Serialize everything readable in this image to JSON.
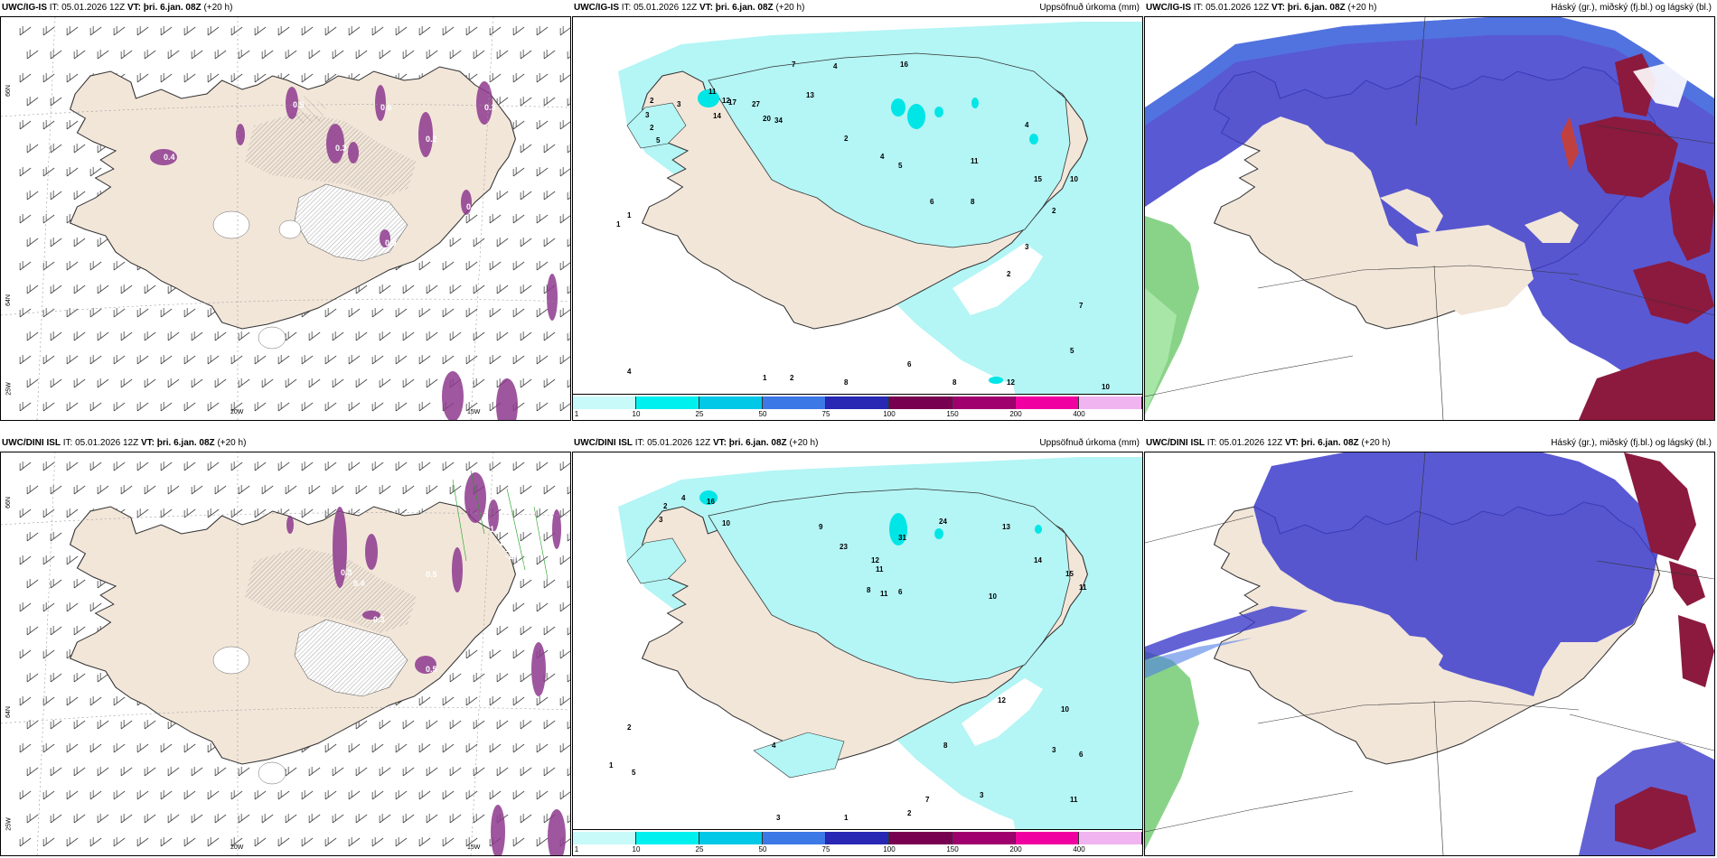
{
  "panels": [
    {
      "model": "UWC/IG-IS",
      "it_prefix": "IT: 05.01.2026 12Z",
      "vt_label": "VT: þri. 6.jan. 08Z",
      "lead": "(+20 h)",
      "right": ""
    },
    {
      "model": "UWC/IG-IS",
      "it_prefix": "IT: 05.01.2026 12Z",
      "vt_label": "VT: þri. 6.jan. 08Z",
      "lead": "(+20 h)",
      "right": "Uppsöfnuð úrkoma (mm)"
    },
    {
      "model": "UWC/IG-IS",
      "it_prefix": "IT: 05.01.2026 12Z",
      "vt_label": "VT: þri. 6.jan. 08Z",
      "lead": "(+20 h)",
      "right": "Háský (gr.), miðský (fj.bl.) og lágský (bl.)"
    },
    {
      "model": "UWC/DINI ISL",
      "it_prefix": "IT: 05.01.2026 12Z",
      "vt_label": "VT: þri. 6.jan. 08Z",
      "lead": "(+20 h)",
      "right": ""
    },
    {
      "model": "UWC/DINI ISL",
      "it_prefix": "IT: 05.01.2026 12Z",
      "vt_label": "VT: þri. 6.jan. 08Z",
      "lead": "(+20 h)",
      "right": "Uppsöfnuð úrkoma (mm)"
    },
    {
      "model": "UWC/DINI ISL",
      "it_prefix": "IT: 05.01.2026 12Z",
      "vt_label": "VT: þri. 6.jan. 08Z",
      "lead": "(+20 h)",
      "right": "Háský (gr.), miðský (fj.bl.) og lágský (bl.)"
    }
  ],
  "axes": {
    "lat66": "66N",
    "lat64": "64N",
    "lon25": "25W",
    "lon20": "20W",
    "lon15": "15W"
  },
  "colorbar": {
    "labels": [
      "1",
      "10",
      "25",
      "50",
      "75",
      "100",
      "150",
      "200",
      "400"
    ],
    "colors": [
      "#c8fafa",
      "#00f0f0",
      "#00c8e6",
      "#3c78e6",
      "#2828b4",
      "#780050",
      "#a0006e",
      "#f000a0",
      "#f0b4f0"
    ]
  },
  "precip_top": [
    {
      "v": "11"
    },
    {
      "v": "2"
    },
    {
      "v": "14"
    },
    {
      "v": "3"
    },
    {
      "v": "2"
    },
    {
      "v": "3"
    },
    {
      "v": "5"
    },
    {
      "v": "12"
    },
    {
      "v": "20"
    },
    {
      "v": "27"
    },
    {
      "v": "34"
    },
    {
      "v": "17"
    },
    {
      "v": "7"
    },
    {
      "v": "13"
    },
    {
      "v": "4"
    },
    {
      "v": "16"
    },
    {
      "v": "2"
    },
    {
      "v": "5"
    },
    {
      "v": "4"
    },
    {
      "v": "11"
    },
    {
      "v": "8"
    },
    {
      "v": "6"
    },
    {
      "v": "4"
    },
    {
      "v": "15"
    },
    {
      "v": "10"
    },
    {
      "v": "2"
    },
    {
      "v": "3"
    },
    {
      "v": "2"
    },
    {
      "v": "1"
    },
    {
      "v": "1"
    },
    {
      "v": "8"
    },
    {
      "v": "6"
    },
    {
      "v": "12"
    },
    {
      "v": "8"
    },
    {
      "v": "10"
    },
    {
      "v": "7"
    },
    {
      "v": "5"
    },
    {
      "v": "2"
    },
    {
      "v": "1"
    },
    {
      "v": "4"
    }
  ],
  "precip_bottom": [
    {
      "v": "2"
    },
    {
      "v": "4"
    },
    {
      "v": "16"
    },
    {
      "v": "10"
    },
    {
      "v": "3"
    },
    {
      "v": "9"
    },
    {
      "v": "23"
    },
    {
      "v": "31"
    },
    {
      "v": "24"
    },
    {
      "v": "12"
    },
    {
      "v": "11"
    },
    {
      "v": "13"
    },
    {
      "v": "14"
    },
    {
      "v": "15"
    },
    {
      "v": "11"
    },
    {
      "v": "8"
    },
    {
      "v": "6"
    },
    {
      "v": "10"
    },
    {
      "v": "12"
    },
    {
      "v": "11"
    },
    {
      "v": "10"
    },
    {
      "v": "6"
    },
    {
      "v": "11"
    },
    {
      "v": "8"
    },
    {
      "v": "3"
    },
    {
      "v": "2"
    },
    {
      "v": "1"
    },
    {
      "v": "5"
    },
    {
      "v": "3"
    },
    {
      "v": "4"
    },
    {
      "v": "7"
    },
    {
      "v": "2"
    },
    {
      "v": "3"
    },
    {
      "v": "1"
    }
  ],
  "ice_labels": [
    {
      "v": "0.4"
    },
    {
      "v": "0.5"
    },
    {
      "v": "0.3"
    },
    {
      "v": "0.6"
    },
    {
      "v": "0.2"
    },
    {
      "v": "0.3"
    },
    {
      "v": "0.4"
    },
    {
      "v": "0.5"
    }
  ],
  "ice_labels_b": [
    {
      "v": "-1.0"
    },
    {
      "v": "-1.6"
    },
    {
      "v": "-1.9"
    },
    {
      "v": "-1.4"
    },
    {
      "v": "-1.4"
    },
    {
      "v": "0.5"
    },
    {
      "v": "0.3"
    },
    {
      "v": "0.4"
    },
    {
      "v": "0.5"
    },
    {
      "v": "0.3"
    }
  ]
}
